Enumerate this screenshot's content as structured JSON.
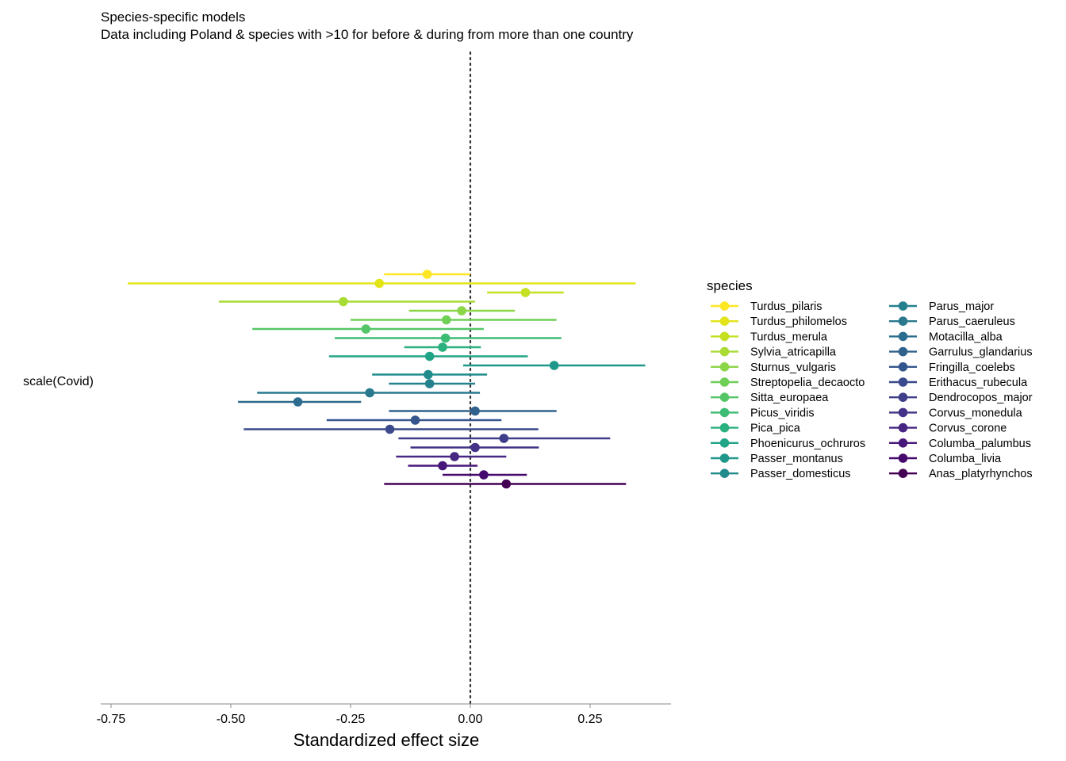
{
  "chart_data": {
    "type": "scatter",
    "subtype": "forest-plot",
    "title": "Species-specific models",
    "subtitle": "Data including Poland & species with >10 for before & during from more than one country",
    "xlabel": "Standardized effect size",
    "ylabel": "",
    "y_category_label": "scale(Covid)",
    "xlim": [
      -0.775,
      0.42
    ],
    "x_ticks": [
      -0.75,
      -0.5,
      -0.25,
      0.0,
      0.25
    ],
    "x_tick_labels": [
      "-0.75",
      "-0.50",
      "-0.25",
      "0.00",
      "0.25"
    ],
    "reference_line": {
      "x": 0,
      "style": "dotted"
    },
    "grid": false,
    "legend": {
      "title": "species",
      "position": "right",
      "columns": 2
    },
    "series": [
      {
        "name": "Turdus_pilaris",
        "estimate": -0.09,
        "ci_low": -0.18,
        "ci_high": 0.0,
        "color": "#FDE725"
      },
      {
        "name": "Turdus_philomelos",
        "estimate": -0.19,
        "ci_low": -0.715,
        "ci_high": 0.345,
        "color": "#E2E418"
      },
      {
        "name": "Turdus_merula",
        "estimate": 0.115,
        "ci_low": 0.035,
        "ci_high": 0.195,
        "color": "#C5E021"
      },
      {
        "name": "Sylvia_atricapilla",
        "estimate": -0.265,
        "ci_low": -0.525,
        "ci_high": 0.01,
        "color": "#A8DB34"
      },
      {
        "name": "Sturnus_vulgaris",
        "estimate": -0.018,
        "ci_low": -0.128,
        "ci_high": 0.093,
        "color": "#8BD646"
      },
      {
        "name": "Streptopelia_decaocto",
        "estimate": -0.05,
        "ci_low": -0.25,
        "ci_high": 0.18,
        "color": "#6FCF57"
      },
      {
        "name": "Sitta_europaea",
        "estimate": -0.218,
        "ci_low": -0.455,
        "ci_high": 0.028,
        "color": "#55C667"
      },
      {
        "name": "Picus_viridis",
        "estimate": -0.052,
        "ci_low": -0.283,
        "ci_high": 0.19,
        "color": "#3DBC74"
      },
      {
        "name": "Pica_pica",
        "estimate": -0.058,
        "ci_low": -0.138,
        "ci_high": 0.022,
        "color": "#2BB07F"
      },
      {
        "name": "Phoenicurus_ochruros",
        "estimate": -0.085,
        "ci_low": -0.295,
        "ci_high": 0.12,
        "color": "#20A486"
      },
      {
        "name": "Passer_montanus",
        "estimate": 0.175,
        "ci_low": -0.015,
        "ci_high": 0.365,
        "color": "#1F988B"
      },
      {
        "name": "Passer_domesticus",
        "estimate": -0.088,
        "ci_low": -0.205,
        "ci_high": 0.035,
        "color": "#228C8D"
      },
      {
        "name": "Parus_major",
        "estimate": -0.085,
        "ci_low": -0.17,
        "ci_high": 0.01,
        "color": "#25808E"
      },
      {
        "name": "Parus_caeruleus",
        "estimate": -0.21,
        "ci_low": -0.445,
        "ci_high": 0.02,
        "color": "#29788E"
      },
      {
        "name": "Motacilla_alba",
        "estimate": -0.36,
        "ci_low": -0.485,
        "ci_high": -0.228,
        "color": "#2C6C8E"
      },
      {
        "name": "Garrulus_glandarius",
        "estimate": 0.01,
        "ci_low": -0.17,
        "ci_high": 0.18,
        "color": "#31618D"
      },
      {
        "name": "Fringilla_coelebs",
        "estimate": -0.115,
        "ci_low": -0.3,
        "ci_high": 0.065,
        "color": "#35568C"
      },
      {
        "name": "Erithacus_rubecula",
        "estimate": -0.168,
        "ci_low": -0.473,
        "ci_high": 0.142,
        "color": "#3A4A8C"
      },
      {
        "name": "Dendrocopos_major",
        "estimate": 0.07,
        "ci_low": -0.15,
        "ci_high": 0.292,
        "color": "#3F3E8A"
      },
      {
        "name": "Corvus_monedula",
        "estimate": 0.01,
        "ci_low": -0.125,
        "ci_high": 0.143,
        "color": "#433287"
      },
      {
        "name": "Corvus_corone",
        "estimate": -0.033,
        "ci_low": -0.155,
        "ci_high": 0.075,
        "color": "#472583"
      },
      {
        "name": "Columba_palumbus",
        "estimate": -0.058,
        "ci_low": -0.13,
        "ci_high": 0.015,
        "color": "#48177A"
      },
      {
        "name": "Columba_livia",
        "estimate": 0.028,
        "ci_low": -0.058,
        "ci_high": 0.118,
        "color": "#460A6F"
      },
      {
        "name": "Anas_platyrhynchos",
        "estimate": 0.075,
        "ci_low": -0.18,
        "ci_high": 0.325,
        "color": "#440154"
      }
    ]
  }
}
